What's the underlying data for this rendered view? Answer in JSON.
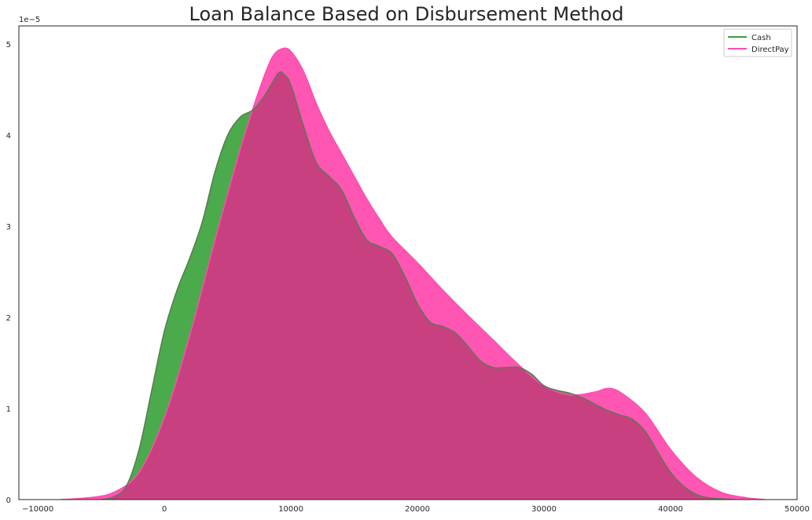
{
  "chart_data": {
    "type": "area",
    "title": "Loan Balance Based on Disbursement Method",
    "xlabel": "",
    "ylabel": "",
    "y_offset_label": "1e−5",
    "xlim": [
      -11500,
      50000
    ],
    "ylim": [
      0,
      5.2
    ],
    "x_ticks": [
      -10000,
      0,
      10000,
      20000,
      30000,
      40000,
      50000
    ],
    "x_tick_labels": [
      "−10000",
      "0",
      "10000",
      "20000",
      "30000",
      "40000",
      "50000"
    ],
    "y_ticks": [
      0,
      1,
      2,
      3,
      4,
      5
    ],
    "y_tick_labels": [
      "0",
      "1",
      "2",
      "3",
      "4",
      "5"
    ],
    "grid": false,
    "legend_position": "top-right",
    "series": [
      {
        "name": "DirectPay",
        "color": "#ff4db0",
        "fill_opacity": 0.95,
        "points": [
          [
            -8200,
            0.0
          ],
          [
            -6000,
            0.02
          ],
          [
            -4000,
            0.08
          ],
          [
            -2000,
            0.3
          ],
          [
            0,
            0.9
          ],
          [
            2000,
            1.8
          ],
          [
            4000,
            2.85
          ],
          [
            6000,
            3.85
          ],
          [
            7500,
            4.5
          ],
          [
            8500,
            4.85
          ],
          [
            9300,
            4.95
          ],
          [
            10000,
            4.92
          ],
          [
            11000,
            4.7
          ],
          [
            12000,
            4.35
          ],
          [
            13000,
            4.05
          ],
          [
            14000,
            3.8
          ],
          [
            15000,
            3.55
          ],
          [
            16000,
            3.3
          ],
          [
            17000,
            3.08
          ],
          [
            18000,
            2.88
          ],
          [
            20000,
            2.6
          ],
          [
            22000,
            2.3
          ],
          [
            24000,
            2.02
          ],
          [
            26000,
            1.75
          ],
          [
            28000,
            1.48
          ],
          [
            30000,
            1.25
          ],
          [
            32000,
            1.15
          ],
          [
            34000,
            1.18
          ],
          [
            35000,
            1.22
          ],
          [
            36000,
            1.18
          ],
          [
            38000,
            0.95
          ],
          [
            40000,
            0.55
          ],
          [
            42000,
            0.25
          ],
          [
            44000,
            0.08
          ],
          [
            46000,
            0.02
          ],
          [
            47500,
            0.0
          ]
        ]
      },
      {
        "name": "Cash",
        "color": "#37a139",
        "overlap_color": "#c94080",
        "fill_opacity": 0.9,
        "points": [
          [
            -5000,
            0.0
          ],
          [
            -4000,
            0.03
          ],
          [
            -3000,
            0.15
          ],
          [
            -2000,
            0.55
          ],
          [
            -1000,
            1.2
          ],
          [
            0,
            1.85
          ],
          [
            1000,
            2.3
          ],
          [
            2000,
            2.65
          ],
          [
            3000,
            3.05
          ],
          [
            4000,
            3.6
          ],
          [
            5000,
            4.0
          ],
          [
            6000,
            4.2
          ],
          [
            7000,
            4.28
          ],
          [
            8000,
            4.45
          ],
          [
            9000,
            4.68
          ],
          [
            9500,
            4.66
          ],
          [
            10000,
            4.55
          ],
          [
            11000,
            4.1
          ],
          [
            12000,
            3.7
          ],
          [
            13000,
            3.55
          ],
          [
            14000,
            3.4
          ],
          [
            15000,
            3.1
          ],
          [
            16000,
            2.85
          ],
          [
            17000,
            2.78
          ],
          [
            18000,
            2.7
          ],
          [
            19000,
            2.45
          ],
          [
            20000,
            2.15
          ],
          [
            21000,
            1.95
          ],
          [
            22000,
            1.9
          ],
          [
            23000,
            1.83
          ],
          [
            24000,
            1.68
          ],
          [
            25000,
            1.52
          ],
          [
            26000,
            1.45
          ],
          [
            27000,
            1.45
          ],
          [
            28000,
            1.45
          ],
          [
            29000,
            1.38
          ],
          [
            30000,
            1.25
          ],
          [
            31000,
            1.2
          ],
          [
            32000,
            1.17
          ],
          [
            33000,
            1.12
          ],
          [
            34000,
            1.05
          ],
          [
            35000,
            0.98
          ],
          [
            36000,
            0.93
          ],
          [
            37000,
            0.88
          ],
          [
            38000,
            0.75
          ],
          [
            39000,
            0.52
          ],
          [
            40000,
            0.3
          ],
          [
            41000,
            0.15
          ],
          [
            42000,
            0.06
          ],
          [
            43000,
            0.02
          ],
          [
            45000,
            0.0
          ]
        ]
      }
    ]
  }
}
